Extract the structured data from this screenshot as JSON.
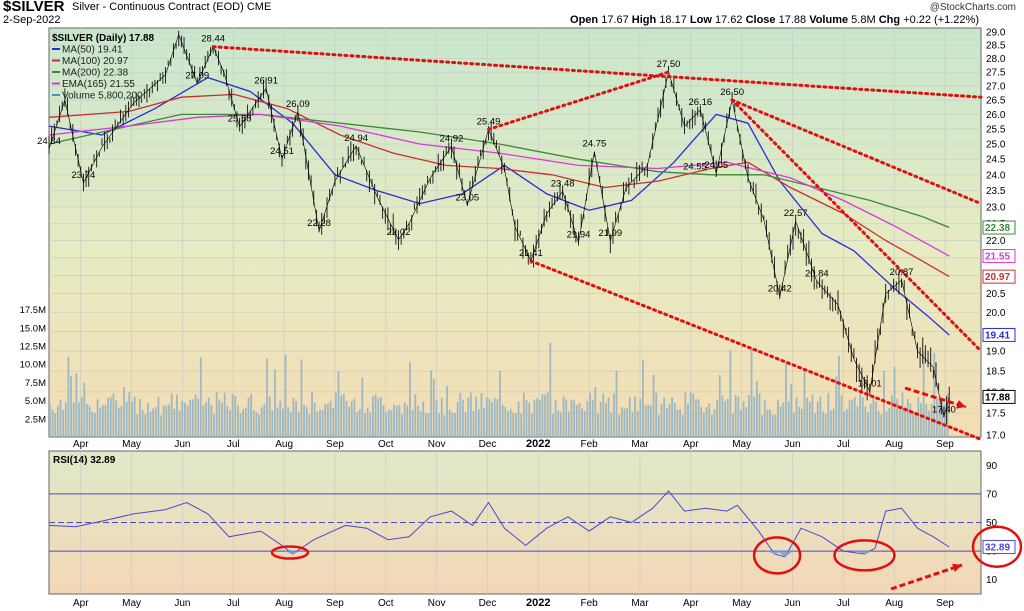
{
  "header": {
    "symbol": "$SILVER",
    "subtitle": "Silver - Continuous Contract (EOD)",
    "exchange": "CME",
    "date": "2-Sep-2022",
    "open_label": "Open",
    "open": "17.67",
    "high_label": "High",
    "high": "18.17",
    "low_label": "Low",
    "low": "17.62",
    "close_label": "Close",
    "close": "17.88",
    "volume_label": "Volume",
    "volume": "5.8M",
    "chg_label": "Chg",
    "chg": "+0.22 (+1.22%)",
    "watermark": "@StockCharts.com"
  },
  "legend": [
    {
      "text": "$SILVER (Daily) 17.88",
      "color": "#000000"
    },
    {
      "text": "MA(50) 19.41",
      "color": "#2b2bd6"
    },
    {
      "text": "MA(100) 20.97",
      "color": "#c83030"
    },
    {
      "text": "MA(200) 22.38",
      "color": "#3a8a3a"
    },
    {
      "text": "EMA(165) 21.55",
      "color": "#d63ad6"
    },
    {
      "text": "Volume 5,800,200",
      "color": "#4a8fc0"
    }
  ],
  "chart_data": [
    {
      "type": "line",
      "title": "Silver - Continuous Contract (EOD)",
      "x_ticks": [
        "Apr",
        "May",
        "Jun",
        "Jul",
        "Aug",
        "Sep",
        "Oct",
        "Nov",
        "Dec",
        "2022",
        "Feb",
        "Mar",
        "Apr",
        "May",
        "Jun",
        "Jul",
        "Aug",
        "Sep"
      ],
      "y_ticks": [
        "17.0",
        "17.5",
        "18.0",
        "18.5",
        "19.0",
        "19.5",
        "20.0",
        "20.5",
        "21.0",
        "21.5",
        "22.0",
        "22.5",
        "23.0",
        "23.5",
        "24.0",
        "24.5",
        "25.0",
        "25.5",
        "26.0",
        "26.5",
        "27.0",
        "27.5",
        "28.0",
        "28.5",
        "29.0"
      ],
      "ylim": [
        17.0,
        29.0
      ],
      "y_scale": "log",
      "volume_ticks": [
        "2.5M",
        "5.0M",
        "7.5M",
        "10.0M",
        "12.5M",
        "15.0M",
        "17.5M"
      ],
      "series": [
        {
          "name": "$SILVER (Daily)",
          "color": "#000000",
          "points": [
            [
              0.0,
              24.84
            ],
            [
              3.0,
              26.5
            ],
            [
              6.5,
              23.74
            ],
            [
              10.0,
              24.9
            ],
            [
              16.0,
              26.4
            ],
            [
              22.0,
              27.4
            ],
            [
              24.5,
              28.9
            ],
            [
              28.0,
              27.09
            ],
            [
              31.0,
              28.44
            ],
            [
              33.0,
              27.5
            ],
            [
              36.0,
              25.58
            ],
            [
              41.0,
              26.91
            ],
            [
              44.0,
              24.51
            ],
            [
              47.0,
              26.09
            ],
            [
              51.0,
              22.28
            ],
            [
              54.0,
              23.8
            ],
            [
              58.0,
              24.94
            ],
            [
              62.0,
              23.3
            ],
            [
              66.0,
              22.02
            ],
            [
              68.0,
              22.5
            ],
            [
              72.0,
              23.9
            ],
            [
              76.0,
              24.92
            ],
            [
              79.0,
              23.05
            ],
            [
              83.0,
              25.49
            ],
            [
              86.0,
              24.2
            ],
            [
              88.0,
              22.4
            ],
            [
              91.0,
              21.41
            ],
            [
              94.0,
              22.8
            ],
            [
              97.0,
              23.48
            ],
            [
              100.0,
              21.94
            ],
            [
              103.0,
              24.75
            ],
            [
              106.0,
              21.99
            ],
            [
              109.0,
              23.6
            ],
            [
              113.0,
              24.3
            ],
            [
              117.0,
              27.5
            ],
            [
              120.0,
              25.6
            ],
            [
              123.0,
              26.16
            ],
            [
              126.0,
              24.05
            ],
            [
              129.0,
              26.5
            ],
            [
              132.0,
              23.9
            ],
            [
              135.0,
              22.6
            ],
            [
              138.0,
              20.42
            ],
            [
              141.0,
              22.57
            ],
            [
              145.0,
              20.84
            ],
            [
              149.0,
              20.2
            ],
            [
              152.0,
              18.8
            ],
            [
              155.0,
              18.01
            ],
            [
              158.0,
              20.5
            ],
            [
              161.0,
              20.87
            ],
            [
              164.0,
              19.0
            ],
            [
              167.0,
              18.6
            ],
            [
              169.0,
              17.4
            ],
            [
              170.0,
              17.88
            ]
          ]
        },
        {
          "name": "MA(50)",
          "color": "#2b2bd6",
          "value": 19.41,
          "points": [
            [
              0,
              25.6
            ],
            [
              10,
              25.3
            ],
            [
              20,
              26.2
            ],
            [
              30,
              27.3
            ],
            [
              38,
              26.8
            ],
            [
              46,
              25.7
            ],
            [
              54,
              24.0
            ],
            [
              62,
              23.5
            ],
            [
              70,
              23.1
            ],
            [
              78,
              23.4
            ],
            [
              86,
              24.3
            ],
            [
              94,
              23.4
            ],
            [
              102,
              22.9
            ],
            [
              110,
              23.2
            ],
            [
              118,
              24.4
            ],
            [
              126,
              26.0
            ],
            [
              132,
              25.7
            ],
            [
              138,
              23.8
            ],
            [
              146,
              22.2
            ],
            [
              152,
              21.7
            ],
            [
              160,
              20.6
            ],
            [
              166,
              19.9
            ],
            [
              170,
              19.41
            ]
          ]
        },
        {
          "name": "MA(100)",
          "color": "#c83030",
          "value": 20.97,
          "points": [
            [
              0,
              25.9
            ],
            [
              15,
              26.1
            ],
            [
              25,
              26.6
            ],
            [
              35,
              26.7
            ],
            [
              45,
              26.2
            ],
            [
              55,
              25.3
            ],
            [
              65,
              24.7
            ],
            [
              75,
              24.3
            ],
            [
              85,
              24.2
            ],
            [
              95,
              24.0
            ],
            [
              105,
              23.6
            ],
            [
              115,
              23.8
            ],
            [
              125,
              24.2
            ],
            [
              132,
              24.4
            ],
            [
              140,
              23.6
            ],
            [
              150,
              22.8
            ],
            [
              158,
              22.0
            ],
            [
              165,
              21.4
            ],
            [
              170,
              20.97
            ]
          ]
        },
        {
          "name": "MA(200)",
          "color": "#3a8a3a",
          "value": 22.38,
          "points": [
            [
              0,
              25.0
            ],
            [
              15,
              25.6
            ],
            [
              25,
              26.0
            ],
            [
              40,
              26.0
            ],
            [
              55,
              25.7
            ],
            [
              70,
              25.4
            ],
            [
              85,
              25.0
            ],
            [
              100,
              24.5
            ],
            [
              115,
              24.1
            ],
            [
              125,
              24.0
            ],
            [
              135,
              24.0
            ],
            [
              145,
              23.6
            ],
            [
              155,
              23.2
            ],
            [
              165,
              22.7
            ],
            [
              170,
              22.38
            ]
          ]
        },
        {
          "name": "EMA(165)",
          "color": "#d63ad6",
          "value": 21.55,
          "points": [
            [
              0,
              25.3
            ],
            [
              15,
              25.6
            ],
            [
              28,
              25.9
            ],
            [
              40,
              26.0
            ],
            [
              55,
              25.6
            ],
            [
              70,
              25.0
            ],
            [
              85,
              24.7
            ],
            [
              100,
              24.3
            ],
            [
              115,
              24.2
            ],
            [
              128,
              24.4
            ],
            [
              140,
              23.9
            ],
            [
              150,
              23.2
            ],
            [
              160,
              22.4
            ],
            [
              170,
              21.55
            ]
          ]
        }
      ],
      "annotations": [
        {
          "x": 0.0,
          "y": 24.84,
          "text": "24.84"
        },
        {
          "x": 6.5,
          "y": 23.74,
          "text": "23.74"
        },
        {
          "x": 28.0,
          "y": 27.09,
          "text": "27.09"
        },
        {
          "x": 31.0,
          "y": 28.44,
          "text": "28.44"
        },
        {
          "x": 36.0,
          "y": 25.58,
          "text": "25.58"
        },
        {
          "x": 41.0,
          "y": 26.91,
          "text": "26.91"
        },
        {
          "x": 44.0,
          "y": 24.51,
          "text": "24.51"
        },
        {
          "x": 47.0,
          "y": 26.09,
          "text": "26.09"
        },
        {
          "x": 51.0,
          "y": 22.28,
          "text": "22.28"
        },
        {
          "x": 58.0,
          "y": 24.94,
          "text": "24.94"
        },
        {
          "x": 66.0,
          "y": 22.02,
          "text": "22.02"
        },
        {
          "x": 76.0,
          "y": 24.92,
          "text": "24.92"
        },
        {
          "x": 79.0,
          "y": 23.05,
          "text": "23.05"
        },
        {
          "x": 83.0,
          "y": 25.49,
          "text": "25.49"
        },
        {
          "x": 91.0,
          "y": 21.41,
          "text": "21.41"
        },
        {
          "x": 97.0,
          "y": 23.48,
          "text": "23.48"
        },
        {
          "x": 100.0,
          "y": 21.94,
          "text": "21.94"
        },
        {
          "x": 103.0,
          "y": 24.75,
          "text": "24.75"
        },
        {
          "x": 106.0,
          "y": 21.99,
          "text": "21.99"
        },
        {
          "x": 117.0,
          "y": 27.5,
          "text": "27.50"
        },
        {
          "x": 123.0,
          "y": 26.16,
          "text": "26.16"
        },
        {
          "x": 122.0,
          "y": 24.55,
          "text": "24.55"
        },
        {
          "x": 126.0,
          "y": 24.05,
          "text": "24.05"
        },
        {
          "x": 129.0,
          "y": 26.5,
          "text": "26.50"
        },
        {
          "x": 138.0,
          "y": 20.42,
          "text": "20.42"
        },
        {
          "x": 141.0,
          "y": 22.57,
          "text": "22.57"
        },
        {
          "x": 145.0,
          "y": 20.84,
          "text": "20.84"
        },
        {
          "x": 155.0,
          "y": 18.01,
          "text": "18.01"
        },
        {
          "x": 161.0,
          "y": 20.87,
          "text": "20.87"
        },
        {
          "x": 169.0,
          "y": 17.4,
          "text": "17.40"
        }
      ],
      "right_tags": [
        {
          "text": "22.38",
          "y": 22.38,
          "color": "#3a8a3a"
        },
        {
          "text": "21.55",
          "y": 21.55,
          "color": "#d63ad6"
        },
        {
          "text": "20.97",
          "y": 20.97,
          "color": "#c83030"
        },
        {
          "text": "19.41",
          "y": 19.41,
          "color": "#2b2bd6"
        },
        {
          "text": "17.88",
          "y": 17.88,
          "color": "#000000"
        }
      ],
      "trendlines": [
        {
          "from": [
            31.0,
            28.44
          ],
          "to": [
            176.0,
            26.6
          ],
          "color": "#e01010"
        },
        {
          "from": [
            83.0,
            25.49
          ],
          "to": [
            117.0,
            27.5
          ],
          "color": "#e01010"
        },
        {
          "from": [
            91.0,
            21.41
          ],
          "to": [
            176.0,
            16.9
          ],
          "color": "#e01010"
        },
        {
          "from": [
            129.0,
            26.5
          ],
          "to": [
            176.0,
            23.1
          ],
          "color": "#e01010"
        },
        {
          "from": [
            129.0,
            26.5
          ],
          "to": [
            176.0,
            19.0
          ],
          "color": "#e01010"
        }
      ],
      "grid": true
    },
    {
      "type": "line",
      "title": "RSI(14) 32.89",
      "ylim": [
        0,
        100
      ],
      "y_ticks": [
        "10",
        "30",
        "50",
        "70",
        "90"
      ],
      "reference_lines": [
        70,
        50,
        30
      ],
      "series": [
        {
          "name": "RSI(14)",
          "color": "#4a4ad0",
          "value": 32.89,
          "points": [
            [
              0,
              48
            ],
            [
              5,
              47
            ],
            [
              10,
              51
            ],
            [
              16,
              56
            ],
            [
              22,
              59
            ],
            [
              26,
              64
            ],
            [
              30,
              56
            ],
            [
              34,
              40
            ],
            [
              40,
              44
            ],
            [
              44,
              34
            ],
            [
              46,
              28
            ],
            [
              50,
              38
            ],
            [
              56,
              48
            ],
            [
              60,
              46
            ],
            [
              64,
              38
            ],
            [
              68,
              40
            ],
            [
              72,
              54
            ],
            [
              76,
              58
            ],
            [
              80,
              48
            ],
            [
              83,
              64
            ],
            [
              86,
              46
            ],
            [
              90,
              34
            ],
            [
              94,
              46
            ],
            [
              98,
              54
            ],
            [
              102,
              44
            ],
            [
              106,
              54
            ],
            [
              110,
              50
            ],
            [
              114,
              60
            ],
            [
              117,
              72
            ],
            [
              120,
              58
            ],
            [
              124,
              60
            ],
            [
              128,
              58
            ],
            [
              130,
              62
            ],
            [
              134,
              44
            ],
            [
              137,
              28
            ],
            [
              139,
              26
            ],
            [
              142,
              46
            ],
            [
              146,
              40
            ],
            [
              150,
              30
            ],
            [
              154,
              28
            ],
            [
              156,
              32
            ],
            [
              158,
              58
            ],
            [
              161,
              60
            ],
            [
              164,
              46
            ],
            [
              167,
              40
            ],
            [
              170,
              32.89
            ]
          ]
        }
      ],
      "x_ticks": [
        "Apr",
        "May",
        "Jun",
        "Jul",
        "Aug",
        "Sep",
        "Oct",
        "Nov",
        "Dec",
        "2022",
        "Feb",
        "Mar",
        "Apr",
        "May",
        "Jun",
        "Jul",
        "Aug",
        "Sep"
      ],
      "right_tags": [
        {
          "text": "32.89",
          "y": 32.89,
          "color": "#4a4ad0"
        }
      ],
      "grid": true
    }
  ]
}
